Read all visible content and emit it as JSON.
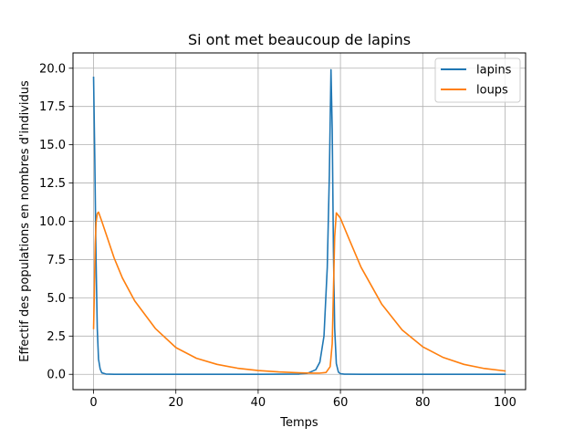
{
  "chart_data": {
    "type": "line",
    "title": "Si ont met beaucoup de lapins",
    "xlabel": "Temps",
    "ylabel": "Effectif des populations en nombres d'individus",
    "xlim": [
      -5,
      105
    ],
    "ylim": [
      -1,
      21
    ],
    "xticks": [
      0,
      20,
      40,
      60,
      80,
      100
    ],
    "xtick_labels": [
      "0",
      "20",
      "40",
      "60",
      "80",
      "100"
    ],
    "yticks": [
      0.0,
      2.5,
      5.0,
      7.5,
      10.0,
      12.5,
      15.0,
      17.5,
      20.0
    ],
    "ytick_labels": [
      "0.0",
      "2.5",
      "5.0",
      "7.5",
      "10.0",
      "12.5",
      "15.0",
      "17.5",
      "20.0"
    ],
    "grid": true,
    "legend_position": "top-right",
    "series": [
      {
        "name": "lapins",
        "color": "#1f77b4",
        "x": [
          0,
          0.3,
          0.6,
          0.9,
          1.2,
          1.6,
          2,
          3,
          5,
          10,
          20,
          30,
          40,
          50,
          52,
          54,
          55,
          56,
          56.8,
          57.3,
          57.7,
          58.0,
          58.3,
          58.6,
          59.0,
          59.5,
          60,
          61,
          65,
          80,
          100
        ],
        "y": [
          19.4,
          14.0,
          7.5,
          3.0,
          1.0,
          0.35,
          0.1,
          0.02,
          0.0,
          0.0,
          0.0,
          0.0,
          0.0,
          0.02,
          0.07,
          0.3,
          0.8,
          2.5,
          7.0,
          13.0,
          19.9,
          16.0,
          8.0,
          3.0,
          0.7,
          0.15,
          0.04,
          0.01,
          0.0,
          0.0,
          0.0
        ]
      },
      {
        "name": "loups",
        "color": "#ff7f0e",
        "x": [
          0,
          0.2,
          0.4,
          0.6,
          0.9,
          1.2,
          2,
          3,
          5,
          7,
          10,
          15,
          20,
          25,
          30,
          35,
          40,
          45,
          50,
          53,
          55,
          56.5,
          57.5,
          58.0,
          58.3,
          58.6,
          59.0,
          60,
          62,
          65,
          70,
          75,
          80,
          85,
          90,
          95,
          100
        ],
        "y": [
          3.0,
          5.5,
          8.5,
          9.9,
          10.5,
          10.6,
          10.0,
          9.2,
          7.6,
          6.3,
          4.8,
          3.0,
          1.75,
          1.05,
          0.65,
          0.4,
          0.25,
          0.16,
          0.1,
          0.08,
          0.08,
          0.12,
          0.5,
          2.0,
          5.5,
          9.0,
          10.55,
          10.2,
          8.9,
          7.0,
          4.6,
          2.9,
          1.8,
          1.1,
          0.65,
          0.38,
          0.22
        ]
      }
    ]
  }
}
